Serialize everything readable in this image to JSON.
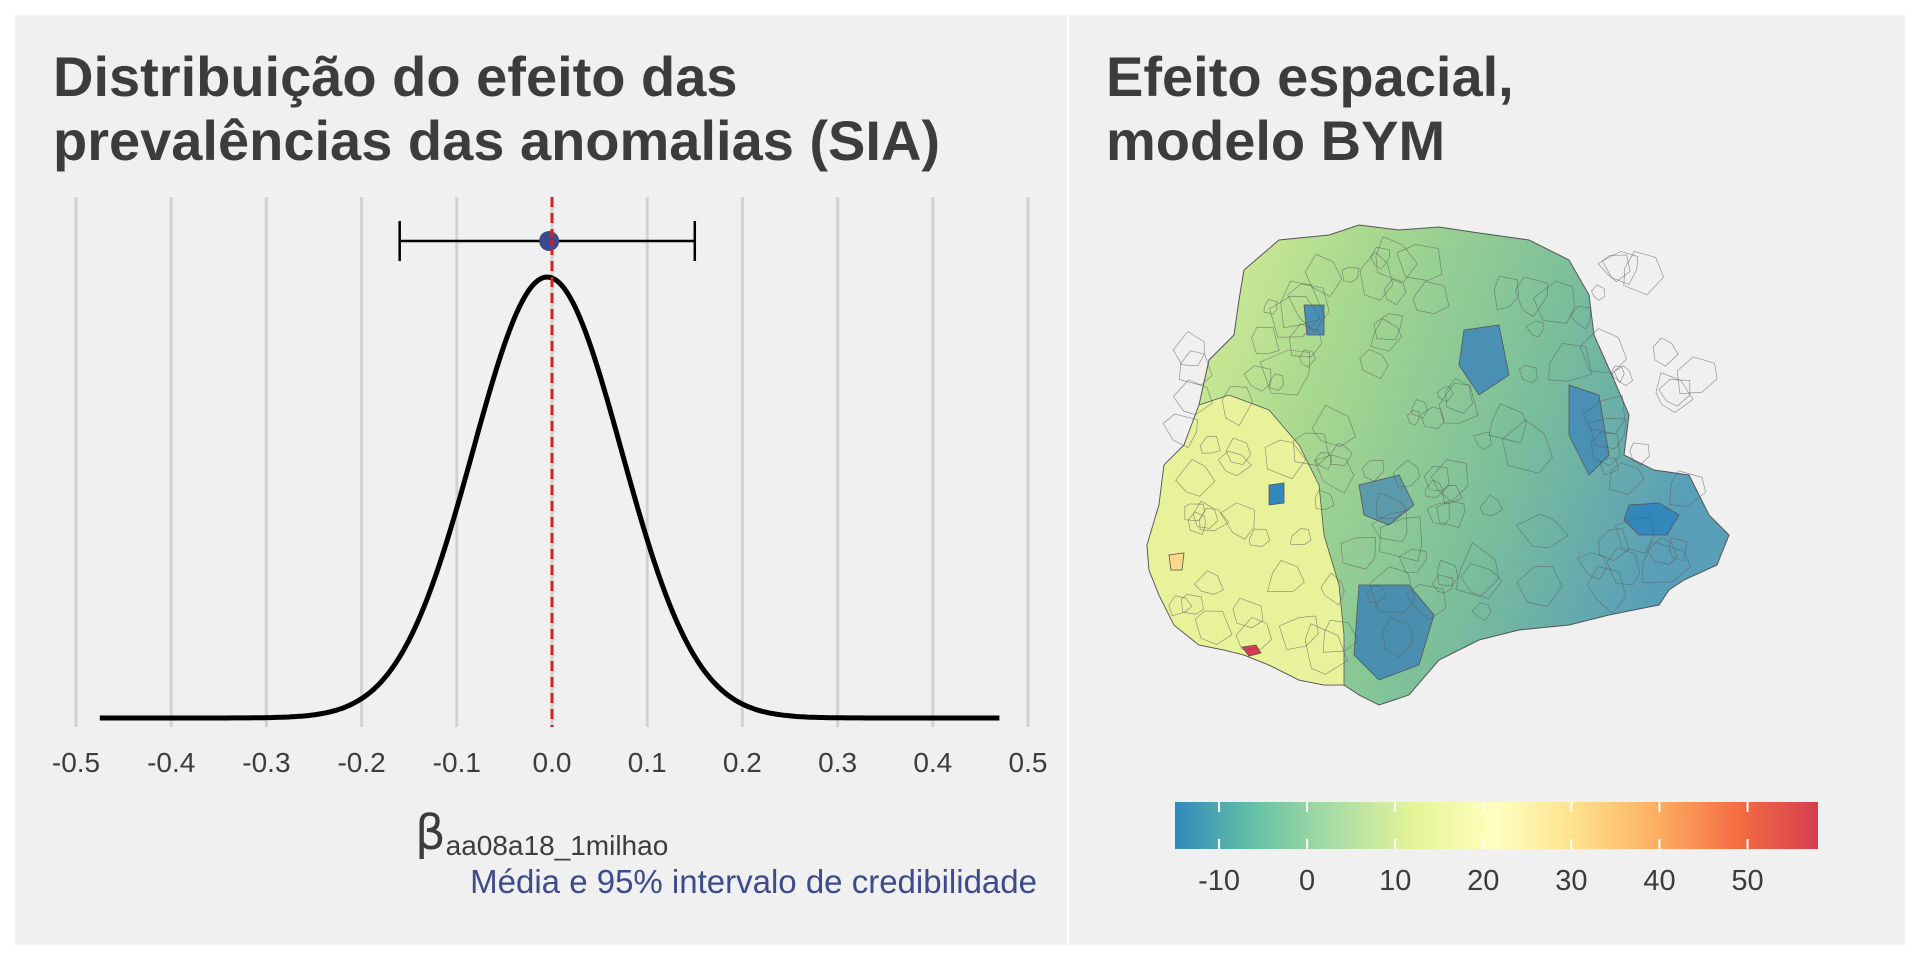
{
  "chart_data": [
    {
      "type": "line",
      "title_lines": [
        "Distribuição do efeito das",
        "prevalências das anomalias (SIA)"
      ],
      "xlabel_symbol": "β",
      "xlabel_subscript": "aa08a18_1milhao",
      "note": "Média e 95% intervalo de credibilidade",
      "xlim": [
        -0.5,
        0.5
      ],
      "x_ticks": [
        "-0.5",
        "-0.4",
        "-0.3",
        "-0.2",
        "-0.1",
        "0.0",
        "0.1",
        "0.2",
        "0.3",
        "0.4",
        "0.5"
      ],
      "x_tick_values": [
        -0.5,
        -0.4,
        -0.3,
        -0.2,
        -0.1,
        0.0,
        0.1,
        0.2,
        0.3,
        0.4,
        0.5
      ],
      "grid": "vertical",
      "density": {
        "x_range": [
          -0.475,
          0.47
        ],
        "mean": -0.005,
        "sd": 0.078
      },
      "point_estimate": -0.003,
      "interval_95": [
        -0.16,
        0.15
      ],
      "reference_line": 0.0,
      "colors": {
        "density": "#000000",
        "reference_line": "#e41a1c",
        "point": "#3d4a8c",
        "grid": "#d2d2d2",
        "note": "#3d4a8c",
        "text": "#3c3c3c"
      }
    },
    {
      "type": "heatmap",
      "title_lines": [
        "Efeito espacial,",
        "modelo BYM"
      ],
      "colorbar": {
        "range": [
          -15,
          58
        ],
        "ticks": [
          -10,
          0,
          10,
          20,
          30,
          40,
          50
        ],
        "tick_labels": [
          "-10",
          "0",
          "10",
          "20",
          "30",
          "40",
          "50"
        ],
        "colors": [
          "#3288bd",
          "#66c2a5",
          "#abdda4",
          "#e6f598",
          "#ffffbf",
          "#fee08b",
          "#fdae61",
          "#f46d43",
          "#d53e4f"
        ]
      }
    }
  ]
}
